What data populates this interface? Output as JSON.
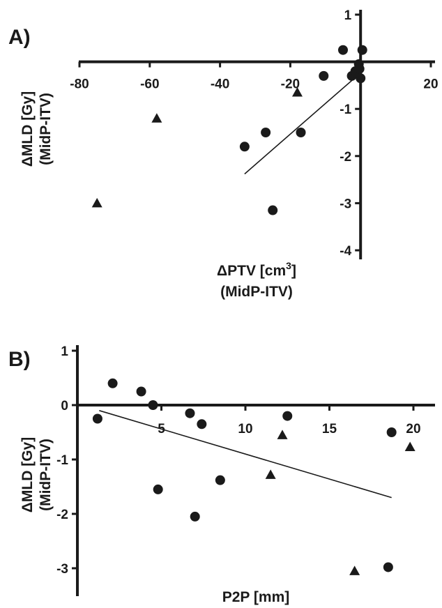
{
  "chart_data": [
    {
      "type": "scatter",
      "panel_label": "A)",
      "xlabel": "ΔPTV [cm",
      "xlabel_sup": "3",
      "xlabel_close": "]",
      "xlabel_line2": "(MidP-ITV)",
      "ylabel": "ΔMLD [Gy]",
      "ylabel_line2": "(MidP-ITV)",
      "xlim": [
        -80,
        20
      ],
      "ylim": [
        -4,
        1
      ],
      "x_ticks": [
        -80,
        -60,
        -40,
        -20,
        20
      ],
      "y_ticks": [
        1,
        -1,
        -2,
        -3,
        -4
      ],
      "series": [
        {
          "marker": "circle",
          "points": [
            {
              "x": -5,
              "y": 0.25
            },
            {
              "x": 0.5,
              "y": 0.25
            },
            {
              "x": -10.5,
              "y": -0.3
            },
            {
              "x": -2.5,
              "y": -0.3
            },
            {
              "x": -1.5,
              "y": -0.2
            },
            {
              "x": -0.5,
              "y": -0.05
            },
            {
              "x": -0.3,
              "y": -0.15
            },
            {
              "x": 0,
              "y": -0.35
            },
            {
              "x": -17,
              "y": -1.5
            },
            {
              "x": -27,
              "y": -1.5
            },
            {
              "x": -33,
              "y": -1.8
            },
            {
              "x": -25,
              "y": -3.15
            }
          ]
        },
        {
          "marker": "triangle",
          "points": [
            {
              "x": -18,
              "y": -0.65
            },
            {
              "x": -58,
              "y": -1.2
            },
            {
              "x": -75,
              "y": -3.0
            }
          ]
        }
      ],
      "fit_line": {
        "x": [
          -33,
          -1
        ],
        "y": [
          -2.38,
          -0.3
        ]
      }
    },
    {
      "type": "scatter",
      "panel_label": "B)",
      "xlabel": "P2P [mm]",
      "ylabel": "ΔMLD [Gy]",
      "ylabel_line2": "(MidP-ITV)",
      "xlim": [
        0,
        22
      ],
      "ylim": [
        -3.5,
        1
      ],
      "x_ticks": [
        5,
        10,
        15,
        20
      ],
      "y_ticks": [
        1,
        0,
        -1,
        -2,
        -3
      ],
      "series": [
        {
          "marker": "circle",
          "points": [
            {
              "x": 1.2,
              "y": -0.25
            },
            {
              "x": 2.1,
              "y": 0.4
            },
            {
              "x": 3.8,
              "y": 0.25
            },
            {
              "x": 4.5,
              "y": 0.0
            },
            {
              "x": 6.7,
              "y": -0.15
            },
            {
              "x": 7.4,
              "y": -0.35
            },
            {
              "x": 12.5,
              "y": -0.2
            },
            {
              "x": 18.7,
              "y": -0.5
            },
            {
              "x": 4.8,
              "y": -1.55
            },
            {
              "x": 8.5,
              "y": -1.38
            },
            {
              "x": 7.0,
              "y": -2.05
            },
            {
              "x": 18.5,
              "y": -2.98
            }
          ]
        },
        {
          "marker": "triangle",
          "points": [
            {
              "x": 12.2,
              "y": -0.55
            },
            {
              "x": 11.5,
              "y": -1.28
            },
            {
              "x": 16.5,
              "y": -3.05
            },
            {
              "x": 19.8,
              "y": -0.77
            }
          ]
        }
      ],
      "fit_line": {
        "x": [
          1.3,
          18.7
        ],
        "y": [
          -0.1,
          -1.7
        ]
      }
    }
  ]
}
